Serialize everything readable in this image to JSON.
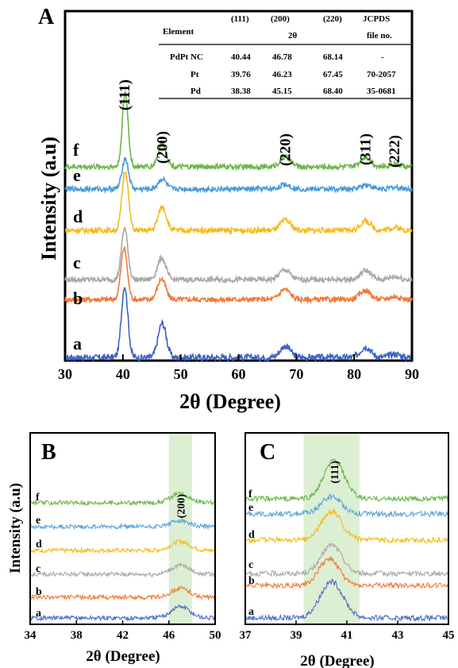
{
  "chart_data": [
    {
      "panel": "A",
      "type": "line",
      "xlabel": "2θ (Degree)",
      "ylabel": "Intensity (a.u)",
      "xlim": [
        30,
        90
      ],
      "xticks": [
        30,
        40,
        50,
        60,
        70,
        80,
        90
      ],
      "peak_labels": [
        {
          "text": "(111)",
          "x": 40.3
        },
        {
          "text": "(200)",
          "x": 46.8
        },
        {
          "text": "(220)",
          "x": 68.1
        },
        {
          "text": "(311)",
          "x": 82.0
        },
        {
          "text": "(222)",
          "x": 87.0
        }
      ],
      "series": [
        {
          "name": "a",
          "color": "#3c62c4",
          "offset": 0,
          "peaks": [
            [
              40.3,
              1.0,
              0.55
            ],
            [
              46.8,
              0.48,
              0.7
            ],
            [
              68.1,
              0.16,
              0.9
            ],
            [
              82.0,
              0.15,
              0.9
            ],
            [
              87.0,
              0.05,
              0.9
            ]
          ]
        },
        {
          "name": "b",
          "color": "#ef7a3a",
          "offset": 1,
          "peaks": [
            [
              40.2,
              0.9,
              0.55
            ],
            [
              46.7,
              0.36,
              0.7
            ],
            [
              68.0,
              0.18,
              0.9
            ],
            [
              81.9,
              0.16,
              0.9
            ],
            [
              87.0,
              0.05,
              0.9
            ]
          ]
        },
        {
          "name": "c",
          "color": "#a8a8a8",
          "offset": 2,
          "peaks": [
            [
              40.3,
              0.9,
              0.55
            ],
            [
              46.7,
              0.38,
              0.7
            ],
            [
              68.0,
              0.17,
              0.9
            ],
            [
              82.0,
              0.16,
              0.9
            ],
            [
              87.0,
              0.05,
              0.9
            ]
          ]
        },
        {
          "name": "d",
          "color": "#f4bb1c",
          "offset": 3,
          "peaks": [
            [
              40.4,
              1.0,
              0.55
            ],
            [
              46.8,
              0.4,
              0.7
            ],
            [
              68.1,
              0.17,
              0.9
            ],
            [
              82.0,
              0.16,
              0.9
            ],
            [
              87.0,
              0.05,
              0.9
            ]
          ]
        },
        {
          "name": "e",
          "color": "#4a9ad8",
          "offset": 4,
          "peaks": [
            [
              40.4,
              0.55,
              0.55
            ],
            [
              46.8,
              0.18,
              0.7
            ],
            [
              68.1,
              0.08,
              0.9
            ],
            [
              82.0,
              0.08,
              0.9
            ],
            [
              87.0,
              0.03,
              0.9
            ]
          ]
        },
        {
          "name": "f",
          "color": "#6cb649",
          "offset": 5,
          "peaks": [
            [
              40.4,
              1.3,
              0.5
            ],
            [
              46.8,
              0.42,
              0.7
            ],
            [
              68.1,
              0.17,
              0.9
            ],
            [
              82.0,
              0.17,
              0.9
            ],
            [
              87.0,
              0.06,
              0.9
            ]
          ]
        }
      ],
      "table": {
        "header_line1": [
          "Element",
          "(111)",
          "(200)",
          "(220)",
          "JCPDS"
        ],
        "header_line2": [
          "",
          "",
          "2θ",
          "",
          "file no."
        ],
        "rows": [
          [
            "PdPt NC",
            "40.44",
            "46.78",
            "68.14",
            "-"
          ],
          [
            "Pt",
            "39.76",
            "46.23",
            "67.45",
            "70-2057"
          ],
          [
            "Pd",
            "38.38",
            "45.15",
            "68.40",
            "35-0681"
          ]
        ]
      }
    },
    {
      "panel": "B",
      "type": "line",
      "xlabel": "2θ (Degree)",
      "ylabel": "Intensity (a.u)",
      "xlim": [
        34,
        50
      ],
      "xticks": [
        34,
        38,
        42,
        46,
        50
      ],
      "highlight_range": [
        46,
        48
      ],
      "highlight_color": "#dcefd3",
      "peak_labels": [
        {
          "text": "(200)",
          "x": 47.0
        }
      ],
      "series": [
        {
          "name": "a",
          "color": "#4a6cc8",
          "offset": 0,
          "peak": [
            47.0,
            0.9,
            0.8
          ]
        },
        {
          "name": "b",
          "color": "#ef7a3a",
          "offset": 1,
          "peak": [
            47.0,
            0.7,
            0.8
          ]
        },
        {
          "name": "c",
          "color": "#a8a8a8",
          "offset": 2,
          "peak": [
            47.0,
            0.7,
            0.8
          ]
        },
        {
          "name": "d",
          "color": "#f4bb1c",
          "offset": 3,
          "peak": [
            47.0,
            0.7,
            0.8
          ]
        },
        {
          "name": "e",
          "color": "#5aa2d8",
          "offset": 4,
          "peak": [
            47.0,
            0.45,
            0.8
          ]
        },
        {
          "name": "f",
          "color": "#6cb649",
          "offset": 5,
          "peak": [
            47.0,
            0.75,
            0.8
          ]
        }
      ]
    },
    {
      "panel": "C",
      "type": "line",
      "xlabel": "2θ (Degree)",
      "ylabel": "",
      "xlim": [
        37,
        45
      ],
      "xticks": [
        37,
        39,
        41,
        43,
        45
      ],
      "highlight_range": [
        39.3,
        41.5
      ],
      "highlight_color": "#dcefd3",
      "peak_labels": [
        {
          "text": "(111)",
          "x": 40.5
        }
      ],
      "series": [
        {
          "name": "a",
          "color": "#4a6cc8",
          "offset": 0,
          "peak": [
            40.4,
            1.9,
            0.45
          ]
        },
        {
          "name": "b",
          "color": "#ef7a3a",
          "offset": 1,
          "peak": [
            40.3,
            1.4,
            0.4
          ]
        },
        {
          "name": "c",
          "color": "#a8a8a8",
          "offset": 2,
          "peak": [
            40.4,
            1.5,
            0.4
          ]
        },
        {
          "name": "d",
          "color": "#f4bb1c",
          "offset": 3,
          "peak": [
            40.4,
            1.5,
            0.4
          ]
        },
        {
          "name": "e",
          "color": "#5aa2d8",
          "offset": 4,
          "peak": [
            40.4,
            0.9,
            0.4
          ]
        },
        {
          "name": "f",
          "color": "#6cb649",
          "offset": 5,
          "peak": [
            40.5,
            2.0,
            0.4
          ]
        }
      ]
    }
  ]
}
